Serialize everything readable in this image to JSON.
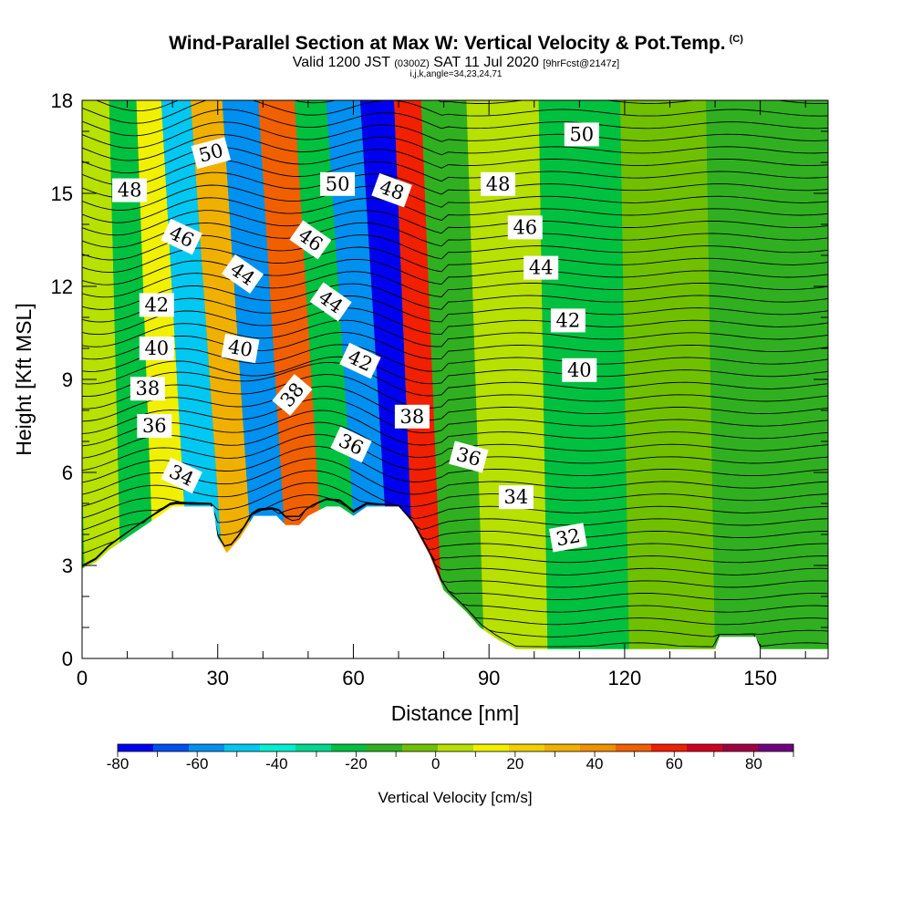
{
  "header": {
    "title": "Wind-Parallel Section at Max W: Vertical Velocity & Pot.Temp.",
    "copyright": "(C)",
    "valid_prefix": "Valid 1200 JST",
    "valid_utc": "(0300Z)",
    "valid_date": "SAT 11 Jul 2020",
    "forecast": "[9hrFcst@2147z]",
    "indices": "i,j,k,angle=34,23,24,71"
  },
  "chart_data": {
    "type": "heatmap",
    "title": "Wind-Parallel Section at Max W: Vertical Velocity & Pot.Temp.",
    "xlabel": "Distance [nm]",
    "ylabel": "Height [Kft MSL]",
    "xlim": [
      0,
      165
    ],
    "ylim": [
      0,
      18
    ],
    "x_ticks": [
      "0",
      "30",
      "60",
      "90",
      "120",
      "150"
    ],
    "y_ticks": [
      "0",
      "3",
      "6",
      "9",
      "12",
      "15",
      "18"
    ],
    "colorbar": {
      "title": "Vertical Velocity [cm/s]",
      "tick_labels": [
        "-80",
        "-60",
        "-40",
        "-20",
        "0",
        "20",
        "40",
        "60",
        "80"
      ],
      "range": [
        -80,
        90
      ],
      "step": 10,
      "colors": [
        "#0000f0",
        "#0050f0",
        "#0090f0",
        "#00c8f0",
        "#00f0d0",
        "#00d890",
        "#00c040",
        "#30b020",
        "#70c000",
        "#b8e000",
        "#f0f000",
        "#f0d000",
        "#f0b000",
        "#f09000",
        "#f06000",
        "#f02000",
        "#d00020",
        "#a00040",
        "#700080"
      ]
    },
    "vertical_velocity_bands": [
      {
        "x_bottom": 5,
        "x_top": 2,
        "value": 10
      },
      {
        "x_bottom": 13,
        "x_top": 10,
        "value": -20
      },
      {
        "x_bottom": 20,
        "x_top": 14,
        "value": 20
      },
      {
        "x_bottom": 29,
        "x_top": 21,
        "value": -50
      },
      {
        "x_bottom": 36,
        "x_top": 27,
        "value": 40
      },
      {
        "x_bottom": 42,
        "x_top": 35,
        "value": -55
      },
      {
        "x_bottom": 51,
        "x_top": 43,
        "value": 65
      },
      {
        "x_bottom": 58,
        "x_top": 51,
        "value": -20
      },
      {
        "x_bottom": 66,
        "x_top": 57,
        "value": -60
      },
      {
        "x_bottom": 72,
        "x_top": 66,
        "value": -75
      },
      {
        "x_bottom": 76,
        "x_top": 72,
        "value": 70
      },
      {
        "x_bottom": 84,
        "x_top": 78,
        "value": -10
      },
      {
        "x_bottom": 94,
        "x_top": 92,
        "value": 15
      },
      {
        "x_bottom": 112,
        "x_top": 110,
        "value": -20
      },
      {
        "x_bottom": 130,
        "x_top": 128,
        "value": 5
      },
      {
        "x_bottom": 150,
        "x_top": 148,
        "value": -5
      }
    ],
    "terrain_kft": [
      [
        0,
        2.9
      ],
      [
        3,
        3.1
      ],
      [
        6,
        3.5
      ],
      [
        9,
        3.8
      ],
      [
        12,
        4.1
      ],
      [
        15,
        4.4
      ],
      [
        18,
        4.7
      ],
      [
        20,
        4.9
      ],
      [
        29,
        4.9
      ],
      [
        30,
        3.9
      ],
      [
        32,
        3.4
      ],
      [
        35,
        3.9
      ],
      [
        38,
        4.6
      ],
      [
        43,
        4.6
      ],
      [
        45,
        4.3
      ],
      [
        48,
        4.3
      ],
      [
        50,
        4.6
      ],
      [
        54,
        4.9
      ],
      [
        57,
        4.9
      ],
      [
        60,
        4.6
      ],
      [
        63,
        4.9
      ],
      [
        70,
        4.9
      ],
      [
        73,
        4.4
      ],
      [
        77,
        3.3
      ],
      [
        80,
        2.2
      ],
      [
        85,
        1.5
      ],
      [
        88,
        1.0
      ],
      [
        92,
        0.6
      ],
      [
        96,
        0.3
      ],
      [
        140,
        0.3
      ],
      [
        141,
        0.7
      ],
      [
        149,
        0.7
      ],
      [
        150,
        0.3
      ],
      [
        165,
        0.3
      ]
    ],
    "potential_temperature": {
      "name": "Pot.Temp.",
      "label_values": [
        "32",
        "34",
        "36",
        "38",
        "40",
        "42",
        "44",
        "46",
        "48",
        "50"
      ],
      "labels": [
        {
          "text": "34",
          "x": 22,
          "y": 5.9,
          "rotation": 25
        },
        {
          "text": "36",
          "x": 16,
          "y": 7.5,
          "rotation": 0
        },
        {
          "text": "38",
          "x": 14.5,
          "y": 8.7,
          "rotation": 0
        },
        {
          "text": "40",
          "x": 16.5,
          "y": 10.0,
          "rotation": 0
        },
        {
          "text": "42",
          "x": 16.5,
          "y": 11.4,
          "rotation": 0
        },
        {
          "text": "46",
          "x": 22,
          "y": 13.6,
          "rotation": 25
        },
        {
          "text": "48",
          "x": 10.5,
          "y": 15.1,
          "rotation": 0
        },
        {
          "text": "50",
          "x": 28.5,
          "y": 16.3,
          "rotation": -15
        },
        {
          "text": "44",
          "x": 35.5,
          "y": 12.4,
          "rotation": 35
        },
        {
          "text": "40",
          "x": 35,
          "y": 10.0,
          "rotation": 10
        },
        {
          "text": "38",
          "x": 46.5,
          "y": 8.5,
          "rotation": -50
        },
        {
          "text": "46",
          "x": 50.5,
          "y": 13.5,
          "rotation": 35
        },
        {
          "text": "44",
          "x": 55,
          "y": 11.5,
          "rotation": 35
        },
        {
          "text": "50",
          "x": 56.5,
          "y": 15.3,
          "rotation": 0
        },
        {
          "text": "42",
          "x": 61.5,
          "y": 9.6,
          "rotation": 25
        },
        {
          "text": "36",
          "x": 59.5,
          "y": 6.9,
          "rotation": 25
        },
        {
          "text": "48",
          "x": 68.5,
          "y": 15.1,
          "rotation": 20
        },
        {
          "text": "38",
          "x": 73,
          "y": 7.8,
          "rotation": 0
        },
        {
          "text": "36",
          "x": 85.5,
          "y": 6.5,
          "rotation": 15
        },
        {
          "text": "48",
          "x": 92,
          "y": 15.3,
          "rotation": 0
        },
        {
          "text": "46",
          "x": 98,
          "y": 13.9,
          "rotation": 0
        },
        {
          "text": "44",
          "x": 101.5,
          "y": 12.6,
          "rotation": 0
        },
        {
          "text": "42",
          "x": 107.5,
          "y": 10.9,
          "rotation": 0
        },
        {
          "text": "40",
          "x": 110,
          "y": 9.3,
          "rotation": 0
        },
        {
          "text": "34",
          "x": 96,
          "y": 5.2,
          "rotation": 0
        },
        {
          "text": "32",
          "x": 107.5,
          "y": 3.9,
          "rotation": -10
        },
        {
          "text": "50",
          "x": 110.5,
          "y": 16.9,
          "rotation": 0
        }
      ]
    }
  }
}
